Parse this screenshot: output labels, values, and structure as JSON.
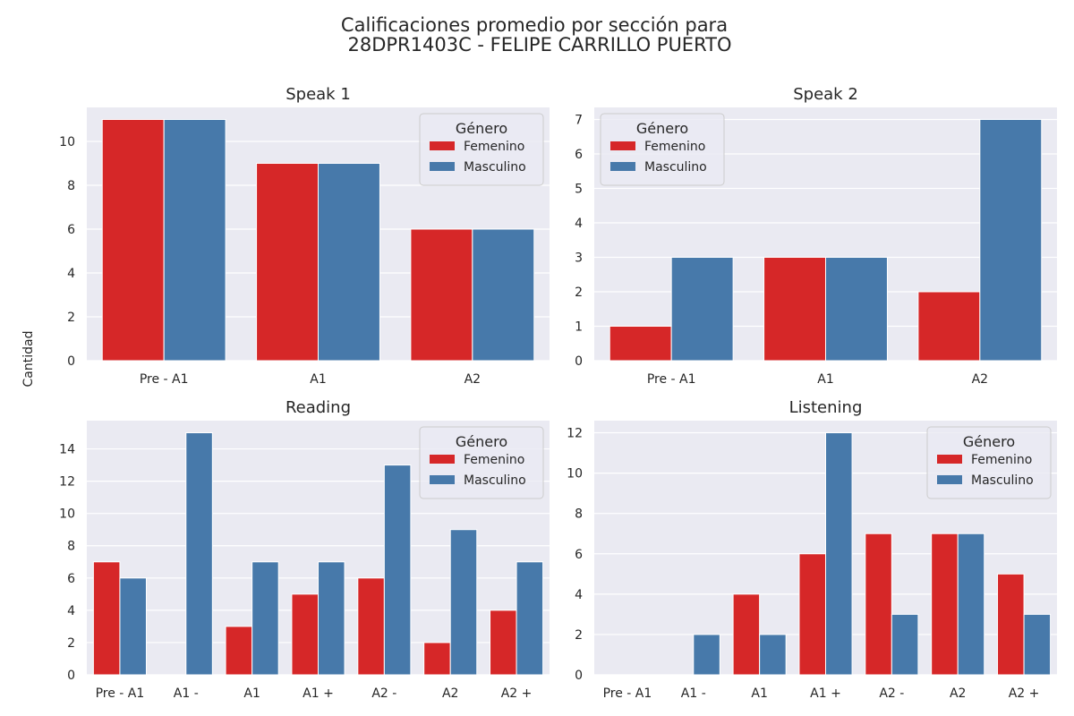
{
  "figure": {
    "title_line1": "Calificaciones promedio por sección para",
    "title_line2": "28DPR1403C - FELIPE CARRILLO PUERTO",
    "ylabel": "Cantidad"
  },
  "colors": {
    "background": "#eaeaf2",
    "grid": "#ffffff",
    "Femenino": "#d62728",
    "Masculino": "#4779aa"
  },
  "chart_data": [
    {
      "type": "bar",
      "title": "Speak 1",
      "categories": [
        "Pre - A1",
        "A1",
        "A2"
      ],
      "series": [
        {
          "name": "Femenino",
          "values": [
            11,
            9,
            6
          ]
        },
        {
          "name": "Masculino",
          "values": [
            11,
            9,
            6
          ]
        }
      ],
      "ylim": [
        0,
        11.55
      ],
      "yticks": [
        0,
        2,
        4,
        6,
        8,
        10
      ],
      "legend": {
        "title": "Género",
        "position": "top-right"
      },
      "grid": true
    },
    {
      "type": "bar",
      "title": "Speak 2",
      "categories": [
        "Pre - A1",
        "A1",
        "A2"
      ],
      "series": [
        {
          "name": "Femenino",
          "values": [
            1,
            3,
            2
          ]
        },
        {
          "name": "Masculino",
          "values": [
            3,
            3,
            7
          ]
        }
      ],
      "ylim": [
        0,
        7.35
      ],
      "yticks": [
        0,
        1,
        2,
        3,
        4,
        5,
        6,
        7
      ],
      "legend": {
        "title": "Género",
        "position": "top-left"
      },
      "grid": true
    },
    {
      "type": "bar",
      "title": "Reading",
      "categories": [
        "Pre - A1",
        "A1 -",
        "A1",
        "A1 +",
        "A2 -",
        "A2",
        "A2 +"
      ],
      "series": [
        {
          "name": "Femenino",
          "values": [
            7,
            0,
            3,
            5,
            6,
            2,
            4
          ]
        },
        {
          "name": "Masculino",
          "values": [
            6,
            15,
            7,
            7,
            13,
            9,
            7
          ]
        }
      ],
      "ylim": [
        0,
        15.75
      ],
      "yticks": [
        0,
        2,
        4,
        6,
        8,
        10,
        12,
        14
      ],
      "legend": {
        "title": "Género",
        "position": "top-right"
      },
      "grid": true
    },
    {
      "type": "bar",
      "title": "Listening",
      "categories": [
        "Pre - A1",
        "A1 -",
        "A1",
        "A1 +",
        "A2 -",
        "A2",
        "A2 +"
      ],
      "series": [
        {
          "name": "Femenino",
          "values": [
            0,
            0,
            4,
            6,
            7,
            7,
            5
          ]
        },
        {
          "name": "Masculino",
          "values": [
            0,
            2,
            2,
            12,
            3,
            7,
            3
          ]
        }
      ],
      "ylim": [
        0,
        12.6
      ],
      "yticks": [
        0,
        2,
        4,
        6,
        8,
        10,
        12
      ],
      "legend": {
        "title": "Género",
        "position": "top-right"
      },
      "grid": true
    }
  ]
}
